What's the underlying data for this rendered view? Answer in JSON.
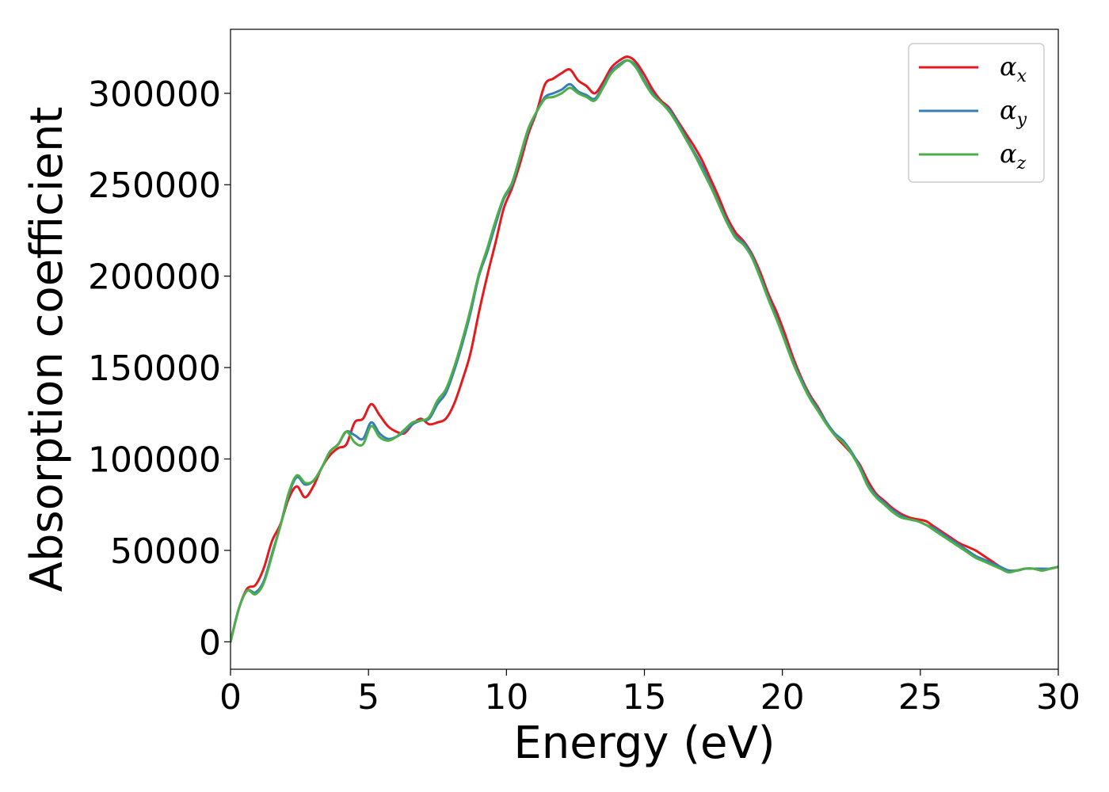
{
  "chart_data": {
    "type": "line",
    "title": "",
    "xlabel": "Energy (eV)",
    "ylabel": "Absorption coefficient",
    "xlim": [
      0,
      30
    ],
    "ylim": [
      -15000,
      335000
    ],
    "xticks": [
      0,
      5,
      10,
      15,
      20,
      25,
      30
    ],
    "yticks": [
      0,
      50000,
      100000,
      150000,
      200000,
      250000,
      300000
    ],
    "grid": false,
    "legend": "top-right",
    "series": [
      {
        "name": "α",
        "subscript": "x",
        "color": "#e41a1c",
        "points": [
          [
            0,
            0
          ],
          [
            0.3,
            18000
          ],
          [
            0.6,
            29000
          ],
          [
            0.9,
            31000
          ],
          [
            1.2,
            40000
          ],
          [
            1.5,
            55000
          ],
          [
            1.8,
            64000
          ],
          [
            2.1,
            78000
          ],
          [
            2.4,
            85000
          ],
          [
            2.7,
            79000
          ],
          [
            3.0,
            85000
          ],
          [
            3.3,
            95000
          ],
          [
            3.6,
            102000
          ],
          [
            3.9,
            106000
          ],
          [
            4.2,
            108000
          ],
          [
            4.5,
            120000
          ],
          [
            4.8,
            122000
          ],
          [
            5.1,
            130000
          ],
          [
            5.4,
            124000
          ],
          [
            5.7,
            118000
          ],
          [
            6.0,
            115000
          ],
          [
            6.3,
            114000
          ],
          [
            6.6,
            119000
          ],
          [
            6.9,
            122000
          ],
          [
            7.2,
            119000
          ],
          [
            7.5,
            120000
          ],
          [
            7.8,
            122000
          ],
          [
            8.1,
            130000
          ],
          [
            8.4,
            143000
          ],
          [
            8.7,
            158000
          ],
          [
            9.0,
            180000
          ],
          [
            9.3,
            200000
          ],
          [
            9.6,
            218000
          ],
          [
            9.9,
            237000
          ],
          [
            10.2,
            248000
          ],
          [
            10.5,
            262000
          ],
          [
            10.8,
            278000
          ],
          [
            11.1,
            290000
          ],
          [
            11.4,
            305000
          ],
          [
            11.7,
            308000
          ],
          [
            12.0,
            311000
          ],
          [
            12.3,
            313000
          ],
          [
            12.6,
            307000
          ],
          [
            12.9,
            304000
          ],
          [
            13.2,
            300000
          ],
          [
            13.5,
            306000
          ],
          [
            13.8,
            314000
          ],
          [
            14.1,
            318000
          ],
          [
            14.4,
            320000
          ],
          [
            14.7,
            317000
          ],
          [
            15.0,
            310000
          ],
          [
            15.3,
            302000
          ],
          [
            15.6,
            296000
          ],
          [
            15.9,
            292000
          ],
          [
            16.2,
            285000
          ],
          [
            16.5,
            278000
          ],
          [
            16.8,
            271000
          ],
          [
            17.1,
            263000
          ],
          [
            17.4,
            253000
          ],
          [
            17.7,
            243000
          ],
          [
            18.0,
            232000
          ],
          [
            18.3,
            224000
          ],
          [
            18.6,
            219000
          ],
          [
            18.9,
            212000
          ],
          [
            19.2,
            202000
          ],
          [
            19.5,
            190000
          ],
          [
            19.8,
            180000
          ],
          [
            20.1,
            168000
          ],
          [
            20.4,
            155000
          ],
          [
            20.7,
            144000
          ],
          [
            21.0,
            135000
          ],
          [
            21.3,
            128000
          ],
          [
            21.6,
            120000
          ],
          [
            21.9,
            113000
          ],
          [
            22.2,
            108000
          ],
          [
            22.5,
            103000
          ],
          [
            22.8,
            97000
          ],
          [
            23.1,
            88000
          ],
          [
            23.4,
            81000
          ],
          [
            23.7,
            77000
          ],
          [
            24.0,
            73000
          ],
          [
            24.3,
            70000
          ],
          [
            24.6,
            68000
          ],
          [
            24.9,
            67000
          ],
          [
            25.2,
            66000
          ],
          [
            25.5,
            63000
          ],
          [
            25.8,
            60000
          ],
          [
            26.1,
            57000
          ],
          [
            26.4,
            54000
          ],
          [
            26.7,
            52000
          ],
          [
            27.0,
            50000
          ],
          [
            27.3,
            47000
          ],
          [
            27.6,
            44000
          ],
          [
            27.9,
            41000
          ],
          [
            28.2,
            39000
          ],
          [
            28.5,
            39000
          ],
          [
            28.8,
            40000
          ],
          [
            29.1,
            40000
          ],
          [
            29.4,
            39000
          ],
          [
            29.7,
            40000
          ],
          [
            30.0,
            41000
          ]
        ]
      },
      {
        "name": "α",
        "subscript": "y",
        "color": "#377eb8",
        "points": [
          [
            0,
            0
          ],
          [
            0.3,
            18000
          ],
          [
            0.6,
            28000
          ],
          [
            0.9,
            27000
          ],
          [
            1.2,
            33000
          ],
          [
            1.5,
            48000
          ],
          [
            1.8,
            63000
          ],
          [
            2.1,
            80000
          ],
          [
            2.4,
            90000
          ],
          [
            2.7,
            86000
          ],
          [
            3.0,
            88000
          ],
          [
            3.3,
            95000
          ],
          [
            3.6,
            104000
          ],
          [
            3.9,
            108000
          ],
          [
            4.2,
            115000
          ],
          [
            4.5,
            113000
          ],
          [
            4.8,
            111000
          ],
          [
            5.1,
            120000
          ],
          [
            5.4,
            114000
          ],
          [
            5.7,
            111000
          ],
          [
            6.0,
            112000
          ],
          [
            6.3,
            115000
          ],
          [
            6.6,
            119000
          ],
          [
            6.9,
            121000
          ],
          [
            7.2,
            122000
          ],
          [
            7.5,
            130000
          ],
          [
            7.8,
            136000
          ],
          [
            8.1,
            148000
          ],
          [
            8.4,
            163000
          ],
          [
            8.7,
            180000
          ],
          [
            9.0,
            200000
          ],
          [
            9.3,
            213000
          ],
          [
            9.6,
            228000
          ],
          [
            9.9,
            242000
          ],
          [
            10.2,
            250000
          ],
          [
            10.5,
            265000
          ],
          [
            10.8,
            280000
          ],
          [
            11.1,
            290000
          ],
          [
            11.4,
            298000
          ],
          [
            11.7,
            300000
          ],
          [
            12.0,
            302000
          ],
          [
            12.3,
            305000
          ],
          [
            12.6,
            301000
          ],
          [
            12.9,
            299000
          ],
          [
            13.2,
            297000
          ],
          [
            13.5,
            304000
          ],
          [
            13.8,
            312000
          ],
          [
            14.1,
            316000
          ],
          [
            14.4,
            318000
          ],
          [
            14.7,
            315000
          ],
          [
            15.0,
            307000
          ],
          [
            15.3,
            300000
          ],
          [
            15.6,
            295000
          ],
          [
            15.9,
            291000
          ],
          [
            16.2,
            284000
          ],
          [
            16.5,
            276000
          ],
          [
            16.8,
            268000
          ],
          [
            17.1,
            260000
          ],
          [
            17.4,
            250000
          ],
          [
            17.7,
            240000
          ],
          [
            18.0,
            230000
          ],
          [
            18.3,
            222000
          ],
          [
            18.6,
            218000
          ],
          [
            18.9,
            211000
          ],
          [
            19.2,
            200000
          ],
          [
            19.5,
            188000
          ],
          [
            19.8,
            177000
          ],
          [
            20.1,
            165000
          ],
          [
            20.4,
            153000
          ],
          [
            20.7,
            143000
          ],
          [
            21.0,
            134000
          ],
          [
            21.3,
            127000
          ],
          [
            21.6,
            120000
          ],
          [
            21.9,
            114000
          ],
          [
            22.2,
            110000
          ],
          [
            22.5,
            104000
          ],
          [
            22.8,
            96000
          ],
          [
            23.1,
            86000
          ],
          [
            23.4,
            80000
          ],
          [
            23.7,
            76000
          ],
          [
            24.0,
            72000
          ],
          [
            24.3,
            69000
          ],
          [
            24.6,
            67000
          ],
          [
            24.9,
            66000
          ],
          [
            25.2,
            64000
          ],
          [
            25.5,
            62000
          ],
          [
            25.8,
            59000
          ],
          [
            26.1,
            56000
          ],
          [
            26.4,
            53000
          ],
          [
            26.7,
            50000
          ],
          [
            27.0,
            47000
          ],
          [
            27.3,
            45000
          ],
          [
            27.6,
            43000
          ],
          [
            27.9,
            41000
          ],
          [
            28.2,
            39000
          ],
          [
            28.5,
            39000
          ],
          [
            28.8,
            40000
          ],
          [
            29.1,
            40000
          ],
          [
            29.4,
            40000
          ],
          [
            29.7,
            40000
          ],
          [
            30.0,
            41000
          ]
        ]
      },
      {
        "name": "α",
        "subscript": "z",
        "color": "#4daf4a",
        "points": [
          [
            0,
            0
          ],
          [
            0.3,
            18000
          ],
          [
            0.6,
            28000
          ],
          [
            0.9,
            26000
          ],
          [
            1.2,
            32000
          ],
          [
            1.5,
            47000
          ],
          [
            1.8,
            63000
          ],
          [
            2.1,
            81000
          ],
          [
            2.4,
            91000
          ],
          [
            2.7,
            87000
          ],
          [
            3.0,
            88000
          ],
          [
            3.3,
            95000
          ],
          [
            3.6,
            104000
          ],
          [
            3.9,
            108000
          ],
          [
            4.2,
            115000
          ],
          [
            4.5,
            109000
          ],
          [
            4.8,
            108000
          ],
          [
            5.1,
            118000
          ],
          [
            5.4,
            112000
          ],
          [
            5.7,
            110000
          ],
          [
            6.0,
            112000
          ],
          [
            6.3,
            116000
          ],
          [
            6.6,
            120000
          ],
          [
            6.9,
            121000
          ],
          [
            7.2,
            123000
          ],
          [
            7.5,
            132000
          ],
          [
            7.8,
            138000
          ],
          [
            8.1,
            150000
          ],
          [
            8.4,
            165000
          ],
          [
            8.7,
            182000
          ],
          [
            9.0,
            201000
          ],
          [
            9.3,
            215000
          ],
          [
            9.6,
            230000
          ],
          [
            9.9,
            243000
          ],
          [
            10.2,
            251000
          ],
          [
            10.5,
            266000
          ],
          [
            10.8,
            281000
          ],
          [
            11.1,
            290000
          ],
          [
            11.4,
            297000
          ],
          [
            11.7,
            298000
          ],
          [
            12.0,
            300000
          ],
          [
            12.3,
            303000
          ],
          [
            12.6,
            300000
          ],
          [
            12.9,
            298000
          ],
          [
            13.2,
            296000
          ],
          [
            13.5,
            303000
          ],
          [
            13.8,
            311000
          ],
          [
            14.1,
            315000
          ],
          [
            14.4,
            318000
          ],
          [
            14.7,
            314000
          ],
          [
            15.0,
            306000
          ],
          [
            15.3,
            299000
          ],
          [
            15.6,
            295000
          ],
          [
            15.9,
            290000
          ],
          [
            16.2,
            283000
          ],
          [
            16.5,
            275000
          ],
          [
            16.8,
            267000
          ],
          [
            17.1,
            258000
          ],
          [
            17.4,
            249000
          ],
          [
            17.7,
            239000
          ],
          [
            18.0,
            229000
          ],
          [
            18.3,
            221000
          ],
          [
            18.6,
            217000
          ],
          [
            18.9,
            210000
          ],
          [
            19.2,
            199000
          ],
          [
            19.5,
            187000
          ],
          [
            19.8,
            176000
          ],
          [
            20.1,
            164000
          ],
          [
            20.4,
            152000
          ],
          [
            20.7,
            142000
          ],
          [
            21.0,
            133000
          ],
          [
            21.3,
            126000
          ],
          [
            21.6,
            119000
          ],
          [
            21.9,
            113000
          ],
          [
            22.2,
            109000
          ],
          [
            22.5,
            103000
          ],
          [
            22.8,
            95000
          ],
          [
            23.1,
            85000
          ],
          [
            23.4,
            79000
          ],
          [
            23.7,
            75000
          ],
          [
            24.0,
            71000
          ],
          [
            24.3,
            68000
          ],
          [
            24.6,
            67000
          ],
          [
            24.9,
            66000
          ],
          [
            25.2,
            64000
          ],
          [
            25.5,
            61000
          ],
          [
            25.8,
            58000
          ],
          [
            26.1,
            55000
          ],
          [
            26.4,
            52000
          ],
          [
            26.7,
            49000
          ],
          [
            27.0,
            46000
          ],
          [
            27.3,
            44000
          ],
          [
            27.6,
            42000
          ],
          [
            27.9,
            40000
          ],
          [
            28.2,
            38000
          ],
          [
            28.5,
            39000
          ],
          [
            28.8,
            40000
          ],
          [
            29.1,
            40000
          ],
          [
            29.4,
            39000
          ],
          [
            29.7,
            40000
          ],
          [
            30.0,
            41000
          ]
        ]
      }
    ]
  }
}
